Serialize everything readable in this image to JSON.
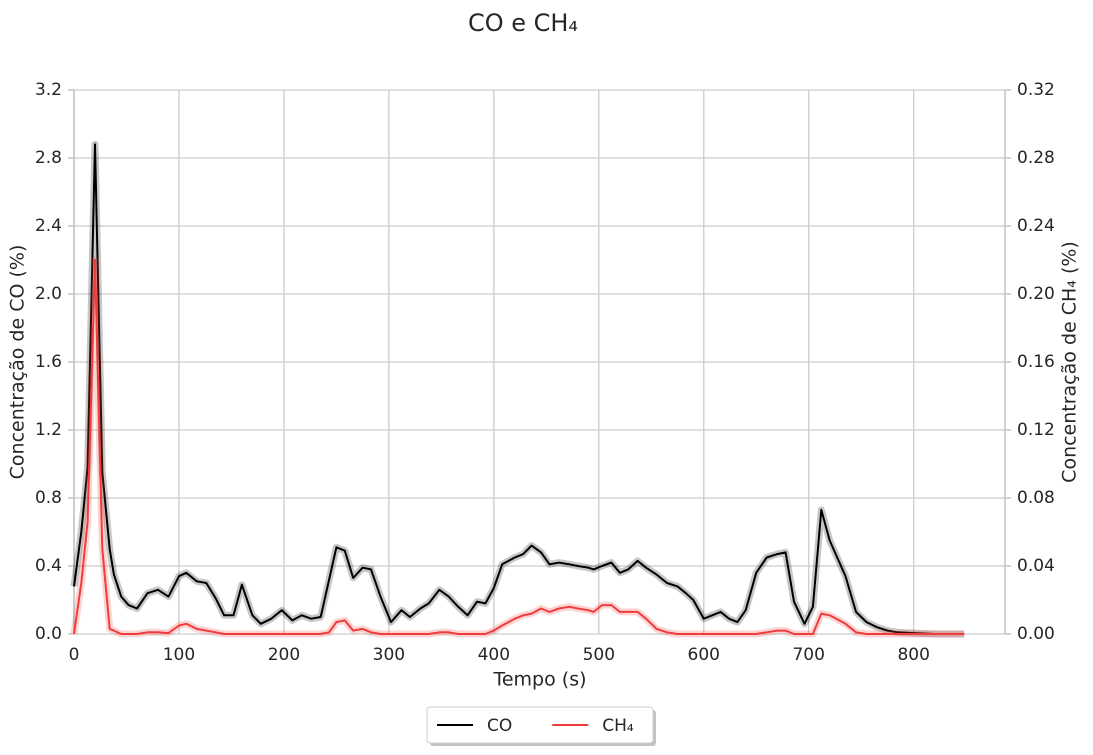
{
  "chart_data": {
    "type": "line",
    "title": "CO e CH₄",
    "x_label": "Tempo (s)",
    "y_label": "Concentração de CO (%)",
    "y2_label": "Concentração de CH₄ (%)",
    "x": [
      0,
      7,
      13,
      20,
      27,
      34,
      38,
      45,
      52,
      60,
      70,
      80,
      90,
      100,
      107,
      117,
      126,
      135,
      143,
      152,
      160,
      170,
      178,
      188,
      198,
      208,
      217,
      226,
      235,
      243,
      250,
      258,
      266,
      275,
      283,
      292,
      302,
      312,
      320,
      330,
      338,
      348,
      357,
      366,
      375,
      384,
      392,
      400,
      408,
      420,
      428,
      436,
      445,
      453,
      462,
      472,
      480,
      490,
      495,
      503,
      512,
      520,
      528,
      537,
      545,
      555,
      565,
      575,
      583,
      590,
      600,
      608,
      616,
      624,
      632,
      640,
      650,
      660,
      670,
      678,
      686,
      696,
      704,
      712,
      720,
      735,
      745,
      755,
      765,
      775,
      785,
      800,
      820,
      848
    ],
    "series": [
      {
        "name": "CO",
        "color": "#000000",
        "values": [
          0.28,
          0.6,
          0.98,
          2.88,
          0.95,
          0.5,
          0.35,
          0.22,
          0.17,
          0.15,
          0.24,
          0.26,
          0.22,
          0.34,
          0.36,
          0.31,
          0.3,
          0.21,
          0.11,
          0.11,
          0.29,
          0.11,
          0.06,
          0.09,
          0.14,
          0.08,
          0.11,
          0.09,
          0.1,
          0.32,
          0.51,
          0.49,
          0.33,
          0.39,
          0.38,
          0.22,
          0.07,
          0.14,
          0.1,
          0.15,
          0.18,
          0.26,
          0.22,
          0.16,
          0.11,
          0.19,
          0.18,
          0.27,
          0.41,
          0.45,
          0.47,
          0.52,
          0.48,
          0.41,
          0.42,
          0.41,
          0.4,
          0.39,
          0.38,
          0.4,
          0.42,
          0.36,
          0.38,
          0.43,
          0.39,
          0.35,
          0.3,
          0.28,
          0.24,
          0.2,
          0.09,
          0.11,
          0.13,
          0.09,
          0.07,
          0.14,
          0.36,
          0.45,
          0.47,
          0.48,
          0.19,
          0.06,
          0.16,
          0.73,
          0.55,
          0.34,
          0.13,
          0.07,
          0.04,
          0.02,
          0.01,
          0.005,
          0,
          0
        ]
      },
      {
        "name": "CH₄",
        "color": "#f03c3c",
        "axis": "y2",
        "values": [
          0,
          0.03,
          0.066,
          0.22,
          0.05,
          0.003,
          0.002,
          0,
          0,
          0,
          0.001,
          0.001,
          0.0005,
          0.005,
          0.006,
          0.003,
          0.002,
          0.001,
          0,
          0,
          0,
          0,
          0,
          0,
          0,
          0,
          0,
          0,
          0,
          0.001,
          0.007,
          0.008,
          0.002,
          0.003,
          0.001,
          0,
          0,
          0,
          0,
          0,
          0,
          0.001,
          0.001,
          0,
          0,
          0,
          0,
          0.002,
          0.005,
          0.009,
          0.011,
          0.012,
          0.015,
          0.013,
          0.015,
          0.016,
          0.015,
          0.014,
          0.013,
          0.017,
          0.017,
          0.013,
          0.013,
          0.013,
          0.009,
          0.003,
          0.001,
          0,
          0,
          0,
          0,
          0,
          0,
          0,
          0,
          0,
          0,
          0.001,
          0.002,
          0.002,
          0,
          0,
          0,
          0.012,
          0.011,
          0.006,
          0.001,
          0,
          0,
          0,
          0,
          0,
          0,
          0
        ]
      }
    ],
    "xlim": [
      0,
      887
    ],
    "xticks": [
      0,
      100,
      200,
      300,
      400,
      500,
      600,
      700,
      800
    ],
    "ylim": [
      0,
      3.2
    ],
    "yticks": [
      {
        "value": 0,
        "label": "0.0"
      },
      0.4,
      0.8,
      1.2,
      1.6,
      {
        "value": 2,
        "label": "2.0"
      },
      2.4,
      2.8,
      3.2
    ],
    "y2lim": [
      0,
      0.32
    ],
    "y2ticks": [
      {
        "value": 0,
        "label": "0.00"
      },
      0.04,
      0.08,
      0.12,
      0.16,
      {
        "value": 0.2,
        "label": "0.20"
      },
      0.24,
      0.28,
      0.32
    ],
    "grid": true,
    "legend": "bottom"
  }
}
